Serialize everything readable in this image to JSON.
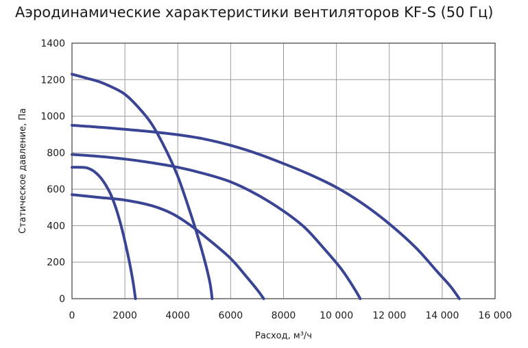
{
  "chart_data": {
    "type": "line",
    "title": "Аэродинамические характеристики вентиляторов KF-S (50 Гц)",
    "xlabel": "Расход, м³/ч",
    "ylabel": "Статическое давление, Па",
    "xlim": [
      0,
      16000
    ],
    "ylim": [
      0,
      1400
    ],
    "x_ticks": [
      0,
      2000,
      4000,
      6000,
      8000,
      10000,
      12000,
      14000,
      16000
    ],
    "x_tick_labels": [
      "0",
      "2000",
      "4000",
      "6000",
      "8000",
      "10 000",
      "12 000",
      "14 000",
      "16 000"
    ],
    "y_ticks": [
      0,
      200,
      400,
      600,
      800,
      1000,
      1200,
      1400
    ],
    "y_tick_labels": [
      "0",
      "200",
      "400",
      "600",
      "800",
      "1000",
      "1200",
      "1400"
    ],
    "grid": true,
    "line_color": "#3a4494",
    "series": [
      {
        "points": [
          [
            0,
            720
          ],
          [
            300,
            720
          ],
          [
            600,
            715
          ],
          [
            900,
            690
          ],
          [
            1200,
            640
          ],
          [
            1500,
            560
          ],
          [
            1800,
            430
          ],
          [
            2100,
            250
          ],
          [
            2300,
            100
          ],
          [
            2400,
            0
          ]
        ]
      },
      {
        "points": [
          [
            0,
            570
          ],
          [
            1000,
            555
          ],
          [
            2000,
            540
          ],
          [
            3000,
            510
          ],
          [
            3800,
            465
          ],
          [
            4500,
            400
          ],
          [
            5200,
            320
          ],
          [
            6000,
            220
          ],
          [
            6600,
            120
          ],
          [
            7000,
            50
          ],
          [
            7250,
            0
          ]
        ]
      },
      {
        "points": [
          [
            0,
            1230
          ],
          [
            500,
            1210
          ],
          [
            1000,
            1190
          ],
          [
            1500,
            1160
          ],
          [
            2000,
            1120
          ],
          [
            2500,
            1050
          ],
          [
            3000,
            960
          ],
          [
            3500,
            830
          ],
          [
            4000,
            670
          ],
          [
            4500,
            460
          ],
          [
            4900,
            270
          ],
          [
            5200,
            100
          ],
          [
            5300,
            0
          ]
        ]
      },
      {
        "points": [
          [
            0,
            790
          ],
          [
            1000,
            780
          ],
          [
            2000,
            765
          ],
          [
            3000,
            745
          ],
          [
            4000,
            720
          ],
          [
            5000,
            685
          ],
          [
            6000,
            640
          ],
          [
            7000,
            570
          ],
          [
            8000,
            480
          ],
          [
            8800,
            390
          ],
          [
            9500,
            280
          ],
          [
            10200,
            160
          ],
          [
            10700,
            50
          ],
          [
            10900,
            0
          ]
        ]
      },
      {
        "points": [
          [
            0,
            950
          ],
          [
            1000,
            940
          ],
          [
            2000,
            928
          ],
          [
            3000,
            915
          ],
          [
            4000,
            898
          ],
          [
            5000,
            875
          ],
          [
            6000,
            840
          ],
          [
            7000,
            795
          ],
          [
            8000,
            740
          ],
          [
            9000,
            680
          ],
          [
            10000,
            610
          ],
          [
            11000,
            520
          ],
          [
            12000,
            410
          ],
          [
            13000,
            280
          ],
          [
            13800,
            150
          ],
          [
            14300,
            70
          ],
          [
            14650,
            0
          ]
        ]
      }
    ]
  }
}
